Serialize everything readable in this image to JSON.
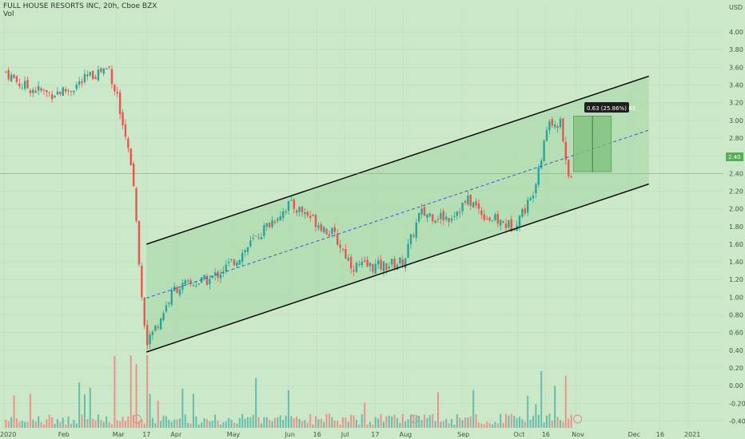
{
  "legend": {
    "symbol": "FULL HOUSE RESORTS INC, 20h, Cboe BZX",
    "volume_label": "Vol"
  },
  "currency": "USD",
  "current_price_label": "2.40",
  "measure_label": "0.63 (25.86%) 63",
  "colors": {
    "background": "#cbe8c8",
    "channel_fill": "#b2dcb0",
    "up": "#26a69a",
    "down": "#ef5350",
    "vol_up": "#5bb8a8",
    "vol_down": "#ee8a83",
    "midline": "#2f5fd6",
    "channel_line": "#000000",
    "price_line": "#52b152",
    "measure_box": "#7cbf7a"
  },
  "chart_data": {
    "type": "candlestick",
    "y_axis": {
      "min": -0.45,
      "max": 4.1,
      "ticks": [
        "4.00",
        "3.80",
        "3.60",
        "3.40",
        "3.20",
        "3.00",
        "2.80",
        "2.60",
        "2.40",
        "2.20",
        "2.00",
        "1.80",
        "1.60",
        "1.40",
        "1.20",
        "1.00",
        "0.80",
        "0.60",
        "0.40",
        "0.20",
        "0.00",
        "-0.20",
        "-0.40"
      ]
    },
    "x_axis": {
      "labels": [
        "2020",
        "Feb",
        "Mar",
        "17",
        "Apr",
        "May",
        "Jun",
        "16",
        "Jul",
        "17",
        "Aug",
        "Sep",
        "Oct",
        "16",
        "Nov",
        "Dec",
        "16",
        "2021"
      ]
    },
    "channel": {
      "upper": [
        [
          "Mar 17",
          1.6
        ],
        [
          "Dec 10",
          3.5
        ]
      ],
      "lower": [
        [
          "Mar 17",
          0.38
        ],
        [
          "Dec 10",
          2.28
        ]
      ],
      "midline": [
        [
          "Mar 17",
          0.99
        ],
        [
          "Dec 10",
          2.89
        ]
      ]
    },
    "price_line": 2.4,
    "measure": {
      "from": 2.42,
      "to": 3.05,
      "change": 0.63,
      "percent": "25.86%"
    },
    "series_keypoints": [
      [
        "Jan 2",
        3.55
      ],
      [
        "Jan 10",
        3.4
      ],
      [
        "Jan 25",
        3.3
      ],
      [
        "Feb 5",
        3.35
      ],
      [
        "Feb 20",
        3.55
      ],
      [
        "Feb 26",
        3.6
      ],
      [
        "Mar 2",
        3.2
      ],
      [
        "Mar 6",
        2.85
      ],
      [
        "Mar 10",
        2.3
      ],
      [
        "Mar 12",
        1.8
      ],
      [
        "Mar 14",
        1.1
      ],
      [
        "Mar 17",
        0.45
      ],
      [
        "Apr 1",
        1.1
      ],
      [
        "Apr 20",
        1.2
      ],
      [
        "May 5",
        1.45
      ],
      [
        "May 20",
        1.8
      ],
      [
        "Jun 1",
        2.05
      ],
      [
        "Jun 10",
        1.95
      ],
      [
        "Jun 25",
        1.7
      ],
      [
        "Jul 5",
        1.35
      ],
      [
        "Jul 20",
        1.35
      ],
      [
        "Aug 1",
        1.4
      ],
      [
        "Aug 10",
        1.95
      ],
      [
        "Aug 25",
        1.9
      ],
      [
        "Sep 5",
        2.1
      ],
      [
        "Sep 15",
        1.9
      ],
      [
        "Sep 28",
        1.8
      ],
      [
        "Oct 8",
        2.1
      ],
      [
        "Oct 18",
        3.0
      ],
      [
        "Oct 24",
        2.95
      ],
      [
        "Oct 28",
        2.35
      ],
      [
        "Oct 30",
        2.4
      ]
    ]
  }
}
